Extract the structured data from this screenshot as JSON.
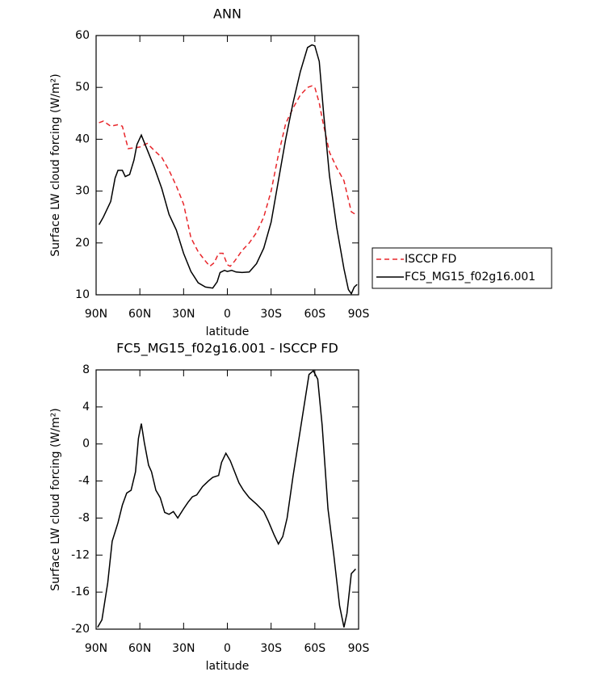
{
  "chart_data": [
    {
      "type": "line",
      "title": "ANN",
      "xlabel": "latitude",
      "ylabel": "Surface LW cloud forcing (W/m²)",
      "xlim": [
        90,
        -90
      ],
      "ylim": [
        10,
        60
      ],
      "xticks": [
        {
          "value": 90,
          "label": "90N"
        },
        {
          "value": 60,
          "label": "60N"
        },
        {
          "value": 30,
          "label": "30N"
        },
        0,
        {
          "value": -30,
          "label": "30S"
        },
        {
          "value": -60,
          "label": "60S"
        },
        {
          "value": -90,
          "label": "90S"
        }
      ],
      "yticks": [
        10,
        20,
        30,
        40,
        50,
        60
      ],
      "legend": "outside-right",
      "series": [
        {
          "name": "ISCCP FD",
          "color": "#e8262b",
          "dash": true,
          "x": [
            88,
            85,
            80,
            75,
            72,
            68,
            65,
            60,
            55,
            50,
            45,
            40,
            35,
            30,
            25,
            20,
            15,
            12,
            9,
            6,
            3,
            0,
            -2,
            -5,
            -10,
            -15,
            -20,
            -25,
            -30,
            -35,
            -40,
            -45,
            -50,
            -55,
            -58,
            -60,
            -63,
            -65,
            -70,
            -75,
            -80,
            -85,
            -88
          ],
          "values": [
            43.2,
            43.5,
            42.5,
            42.8,
            42.5,
            38.2,
            38.3,
            38.5,
            39.2,
            37.8,
            36.5,
            34,
            31,
            27.5,
            21,
            18.3,
            16.5,
            15.5,
            16.2,
            18,
            18,
            15.8,
            15.5,
            16.5,
            18.5,
            20,
            22,
            25,
            30,
            37,
            43,
            46,
            48.5,
            50,
            50.3,
            50,
            47,
            44,
            37.5,
            34.5,
            32,
            26,
            25.5
          ]
        },
        {
          "name": "FC5_MG15_f02g16.001",
          "color": "#000000",
          "dash": false,
          "x": [
            88,
            85,
            80,
            77,
            75,
            72,
            70,
            67,
            64,
            62,
            59,
            55,
            50,
            45,
            40,
            35,
            30,
            25,
            20,
            15,
            10,
            7,
            5,
            2,
            0,
            -3,
            -6,
            -10,
            -15,
            -20,
            -25,
            -30,
            -35,
            -40,
            -45,
            -50,
            -55,
            -58,
            -60,
            -63,
            -66,
            -70,
            -75,
            -80,
            -83,
            -85,
            -87,
            -89
          ],
          "values": [
            23.5,
            25,
            28,
            32.5,
            34,
            34,
            32.8,
            33.2,
            36,
            39,
            40.8,
            38,
            34.5,
            30.5,
            25.5,
            22.5,
            18,
            14.5,
            12.3,
            11.5,
            11.3,
            12.5,
            14.3,
            14.7,
            14.5,
            14.7,
            14.4,
            14.3,
            14.4,
            16,
            19,
            24,
            32,
            40,
            47,
            53,
            57.7,
            58.2,
            58,
            55,
            45,
            33,
            23,
            15,
            11,
            10.2,
            11.5,
            12
          ]
        }
      ]
    },
    {
      "type": "line",
      "title": "FC5_MG15_f02g16.001 - ISCCP FD",
      "xlabel": "latitude",
      "ylabel": "Surface LW cloud forcing (W/m²)",
      "xlim": [
        90,
        -90
      ],
      "ylim": [
        -20,
        8
      ],
      "xticks": [
        {
          "value": 90,
          "label": "90N"
        },
        {
          "value": 60,
          "label": "60N"
        },
        {
          "value": 30,
          "label": "30N"
        },
        0,
        {
          "value": -30,
          "label": "30S"
        },
        {
          "value": -60,
          "label": "60S"
        },
        {
          "value": -90,
          "label": "90S"
        }
      ],
      "yticks": [
        -20,
        -16,
        -12,
        -8,
        -4,
        0,
        4,
        8
      ],
      "series": [
        {
          "color": "#000000",
          "dash": false,
          "x": [
            89,
            86,
            82,
            79,
            75,
            72,
            69,
            66,
            63,
            61,
            59,
            57,
            54,
            52,
            49,
            46,
            43,
            40,
            37,
            34,
            30,
            27,
            24,
            21,
            17,
            13,
            10,
            6,
            4,
            1,
            -2,
            -5,
            -8,
            -11,
            -15,
            -20,
            -25,
            -28,
            -32,
            -35,
            -38,
            -41,
            -45,
            -50,
            -53,
            -56,
            -59,
            -62,
            -65,
            -69,
            -73,
            -77,
            -80,
            -82,
            -85,
            -88
          ],
          "values": [
            -19.8,
            -19,
            -15,
            -10.5,
            -8.5,
            -6.6,
            -5.3,
            -5,
            -3,
            0.6,
            2.2,
            0.2,
            -2.3,
            -3,
            -5,
            -5.8,
            -7.4,
            -7.6,
            -7.3,
            -8,
            -7,
            -6.3,
            -5.7,
            -5.5,
            -4.6,
            -4,
            -3.6,
            -3.4,
            -2,
            -1,
            -1.8,
            -3,
            -4.2,
            -5,
            -5.8,
            -6.5,
            -7.3,
            -8.3,
            -9.8,
            -10.8,
            -10,
            -8,
            -3.5,
            1.5,
            4.5,
            7.5,
            7.9,
            7,
            2,
            -7,
            -12,
            -17.5,
            -19.8,
            -18.3,
            -14,
            -13.5
          ]
        }
      ]
    }
  ]
}
